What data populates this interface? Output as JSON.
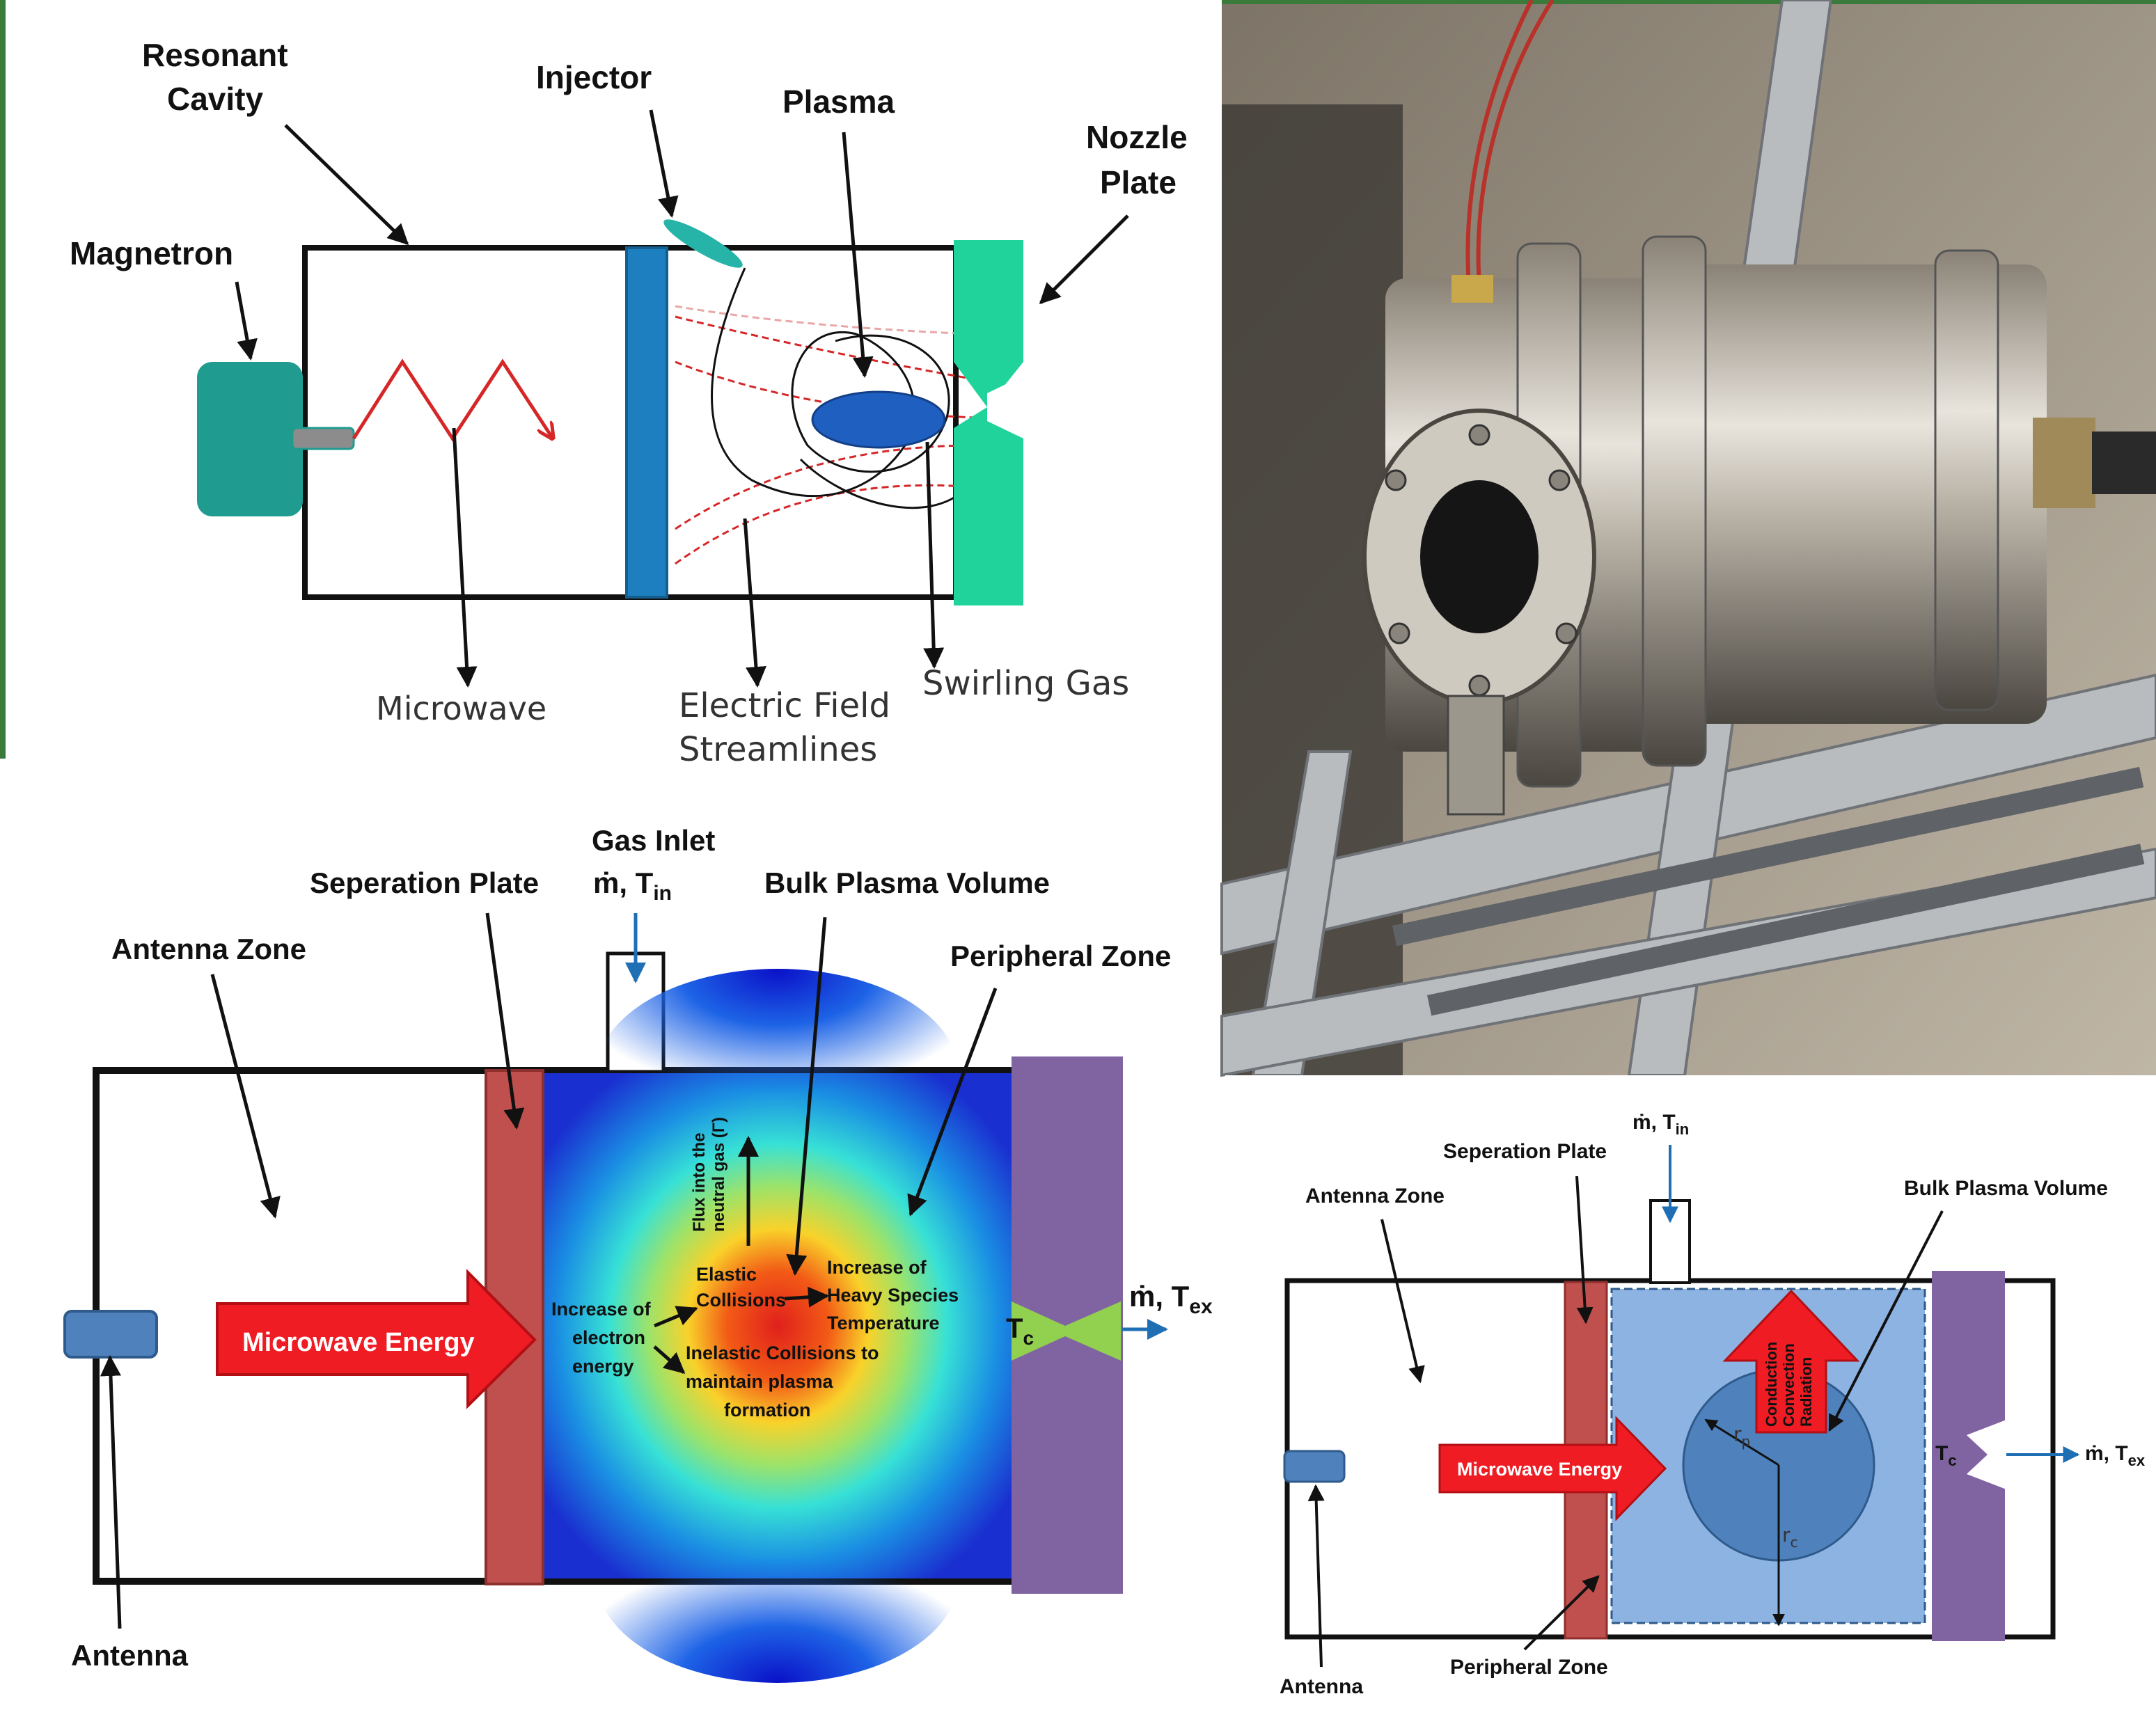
{
  "panel_a": {
    "resonant_cavity": [
      "Resonant",
      "Cavity"
    ],
    "injector": "Injector",
    "plasma": "Plasma",
    "nozzle_plate": [
      "Nozzle",
      "Plate"
    ],
    "magnetron": "Magnetron",
    "microwave": "Microwave",
    "electric_field": [
      "Electric Field",
      "Streamlines"
    ],
    "swirling_gas": "Swirling Gas"
  },
  "panel_c": {
    "gas_inlet": "Gas Inlet",
    "mdot_tin": "ṁ, T",
    "sub_in": "in",
    "separation_plate": "Seperation Plate",
    "bulk_plasma": "Bulk Plasma Volume",
    "antenna_zone": "Antenna Zone",
    "peripheral_zone": "Peripheral Zone",
    "microwave_energy": "Microwave Energy",
    "flux": [
      "Flux into the",
      "neutral gas (Γ)"
    ],
    "elastic": [
      "Elastic",
      "Collisions"
    ],
    "increase_heavy": [
      "Increase of",
      "Heavy Species",
      "Temperature"
    ],
    "increase_electron": [
      "Increase of",
      "electron",
      "energy"
    ],
    "inelastic": [
      "Inelastic Collisions to",
      "maintain plasma",
      "formation"
    ],
    "tc": "T",
    "sub_c": "c",
    "mdot_tex": "ṁ, T",
    "sub_ex": "ex",
    "antenna": "Antenna"
  },
  "panel_d": {
    "mdot_tin": "ṁ, T",
    "sub_in": "in",
    "separation_plate": "Seperation Plate",
    "antenna_zone": "Antenna Zone",
    "bulk_plasma": "Bulk Plasma Volume",
    "microwave_energy": "Microwave Energy",
    "heat": [
      "Conduction",
      "Convection",
      "Radiation"
    ],
    "rp": "r",
    "sub_p": "p",
    "rc": "r",
    "sub_c": "c",
    "tc": "T",
    "mdot_tex": "ṁ, T",
    "sub_ex": "ex",
    "peripheral_zone": "Peripheral Zone",
    "antenna": "Antenna"
  }
}
